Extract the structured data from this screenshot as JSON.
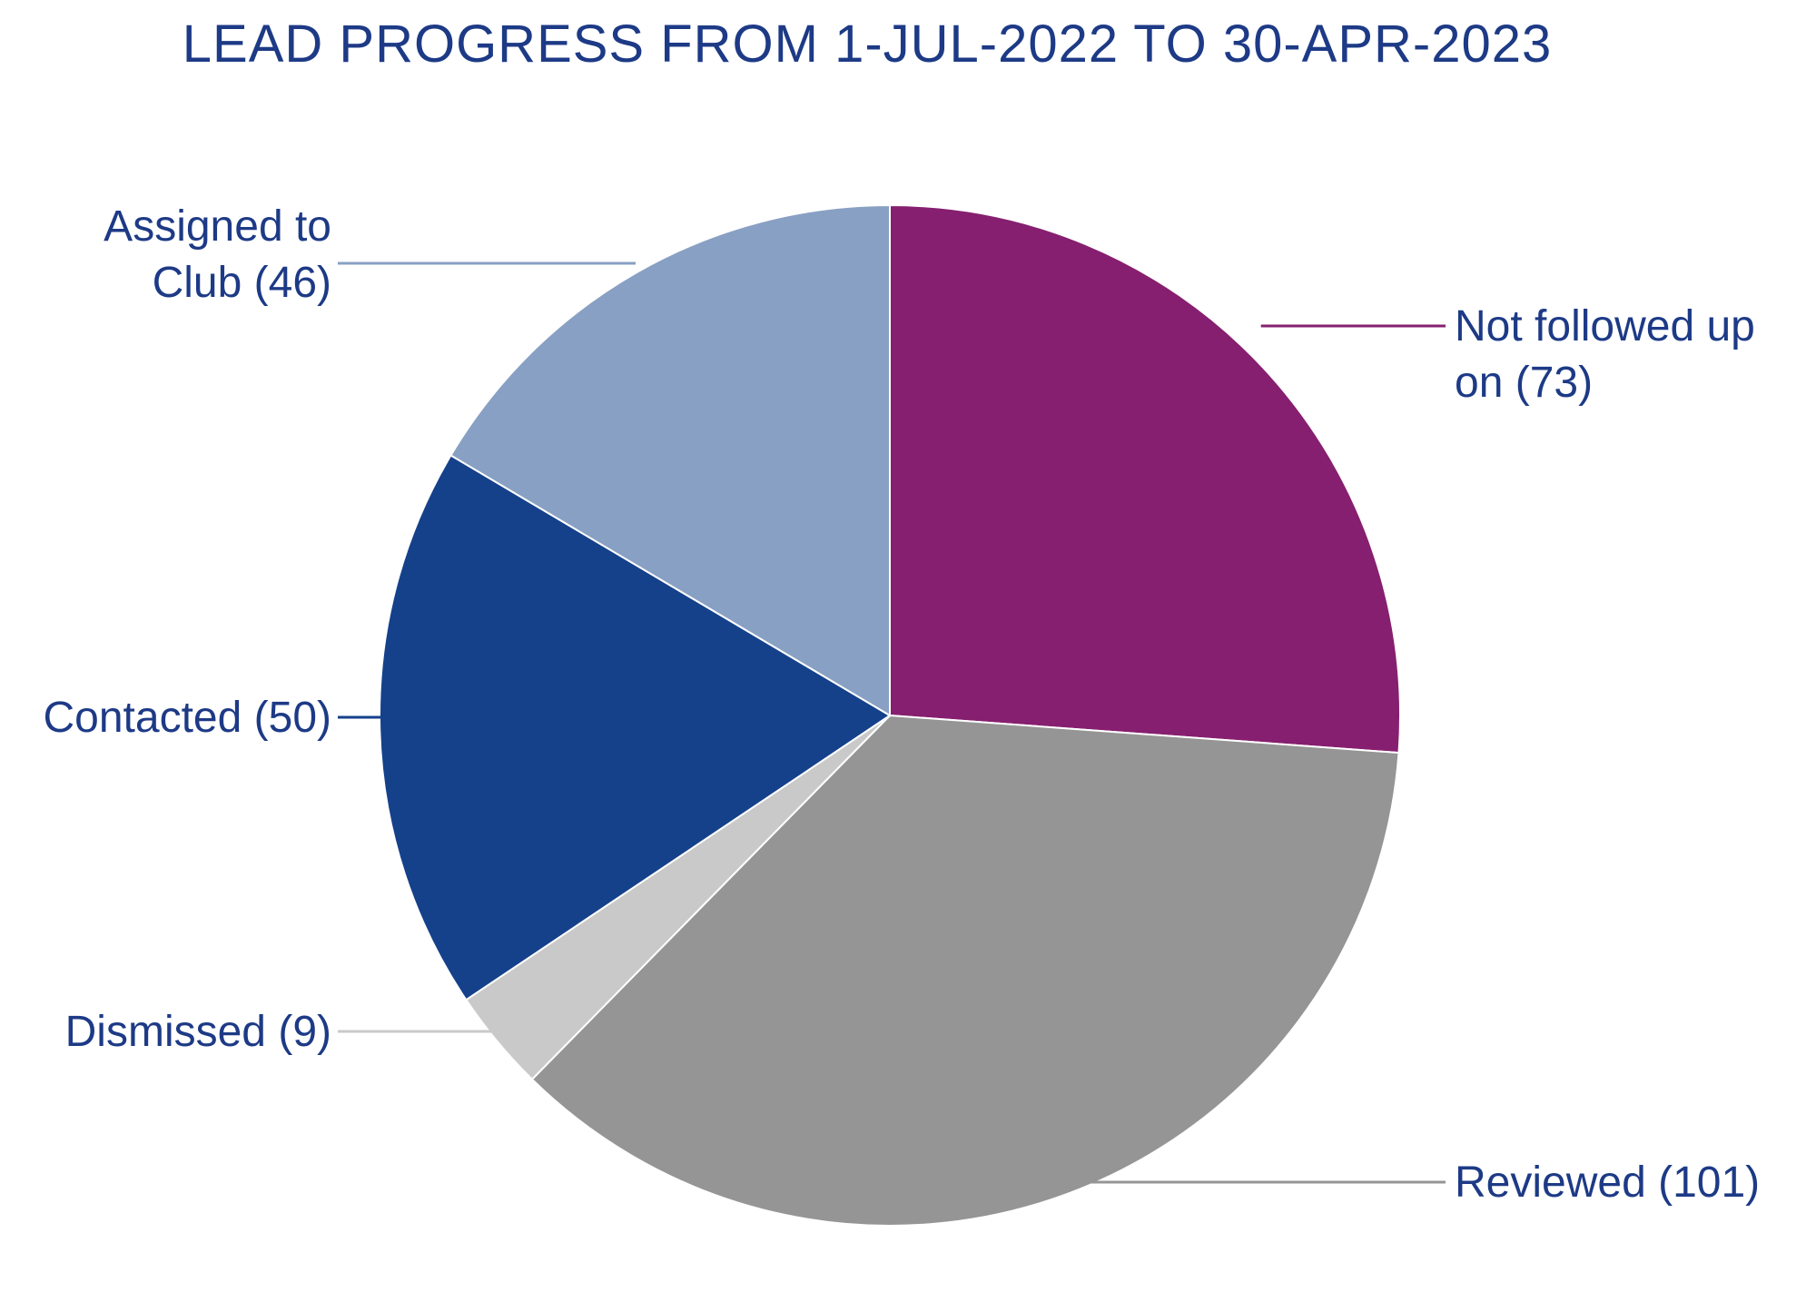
{
  "chart_data": {
    "type": "pie",
    "title": "LEAD PROGRESS FROM 1-JUL-2022 TO 30-APR-2023",
    "start_angle_deg": 0,
    "direction": "clockwise",
    "slices": [
      {
        "key": "not-followed-up",
        "label_lines": [
          "Not followed up",
          "on (73)"
        ],
        "category": "Not followed up on",
        "value": 73,
        "color": "#861f6f",
        "label_side": "right"
      },
      {
        "key": "reviewed",
        "label_lines": [
          "Reviewed (101)"
        ],
        "category": "Reviewed",
        "value": 101,
        "color": "#949594",
        "label_side": "right"
      },
      {
        "key": "dismissed",
        "label_lines": [
          "Dismissed (9)"
        ],
        "category": "Dismissed",
        "value": 9,
        "color": "#c9c9c9",
        "label_side": "left"
      },
      {
        "key": "contacted",
        "label_lines": [
          "Contacted (50)"
        ],
        "category": "Contacted",
        "value": 50,
        "color": "#15418b",
        "label_side": "left"
      },
      {
        "key": "assigned-to-club",
        "label_lines": [
          "Assigned to",
          "Club (46)"
        ],
        "category": "Assigned to Club",
        "value": 46,
        "color": "#88a0c3",
        "label_side": "left"
      }
    ],
    "label_color": "#1d3a86",
    "slice_border_color": "#ffffff"
  }
}
